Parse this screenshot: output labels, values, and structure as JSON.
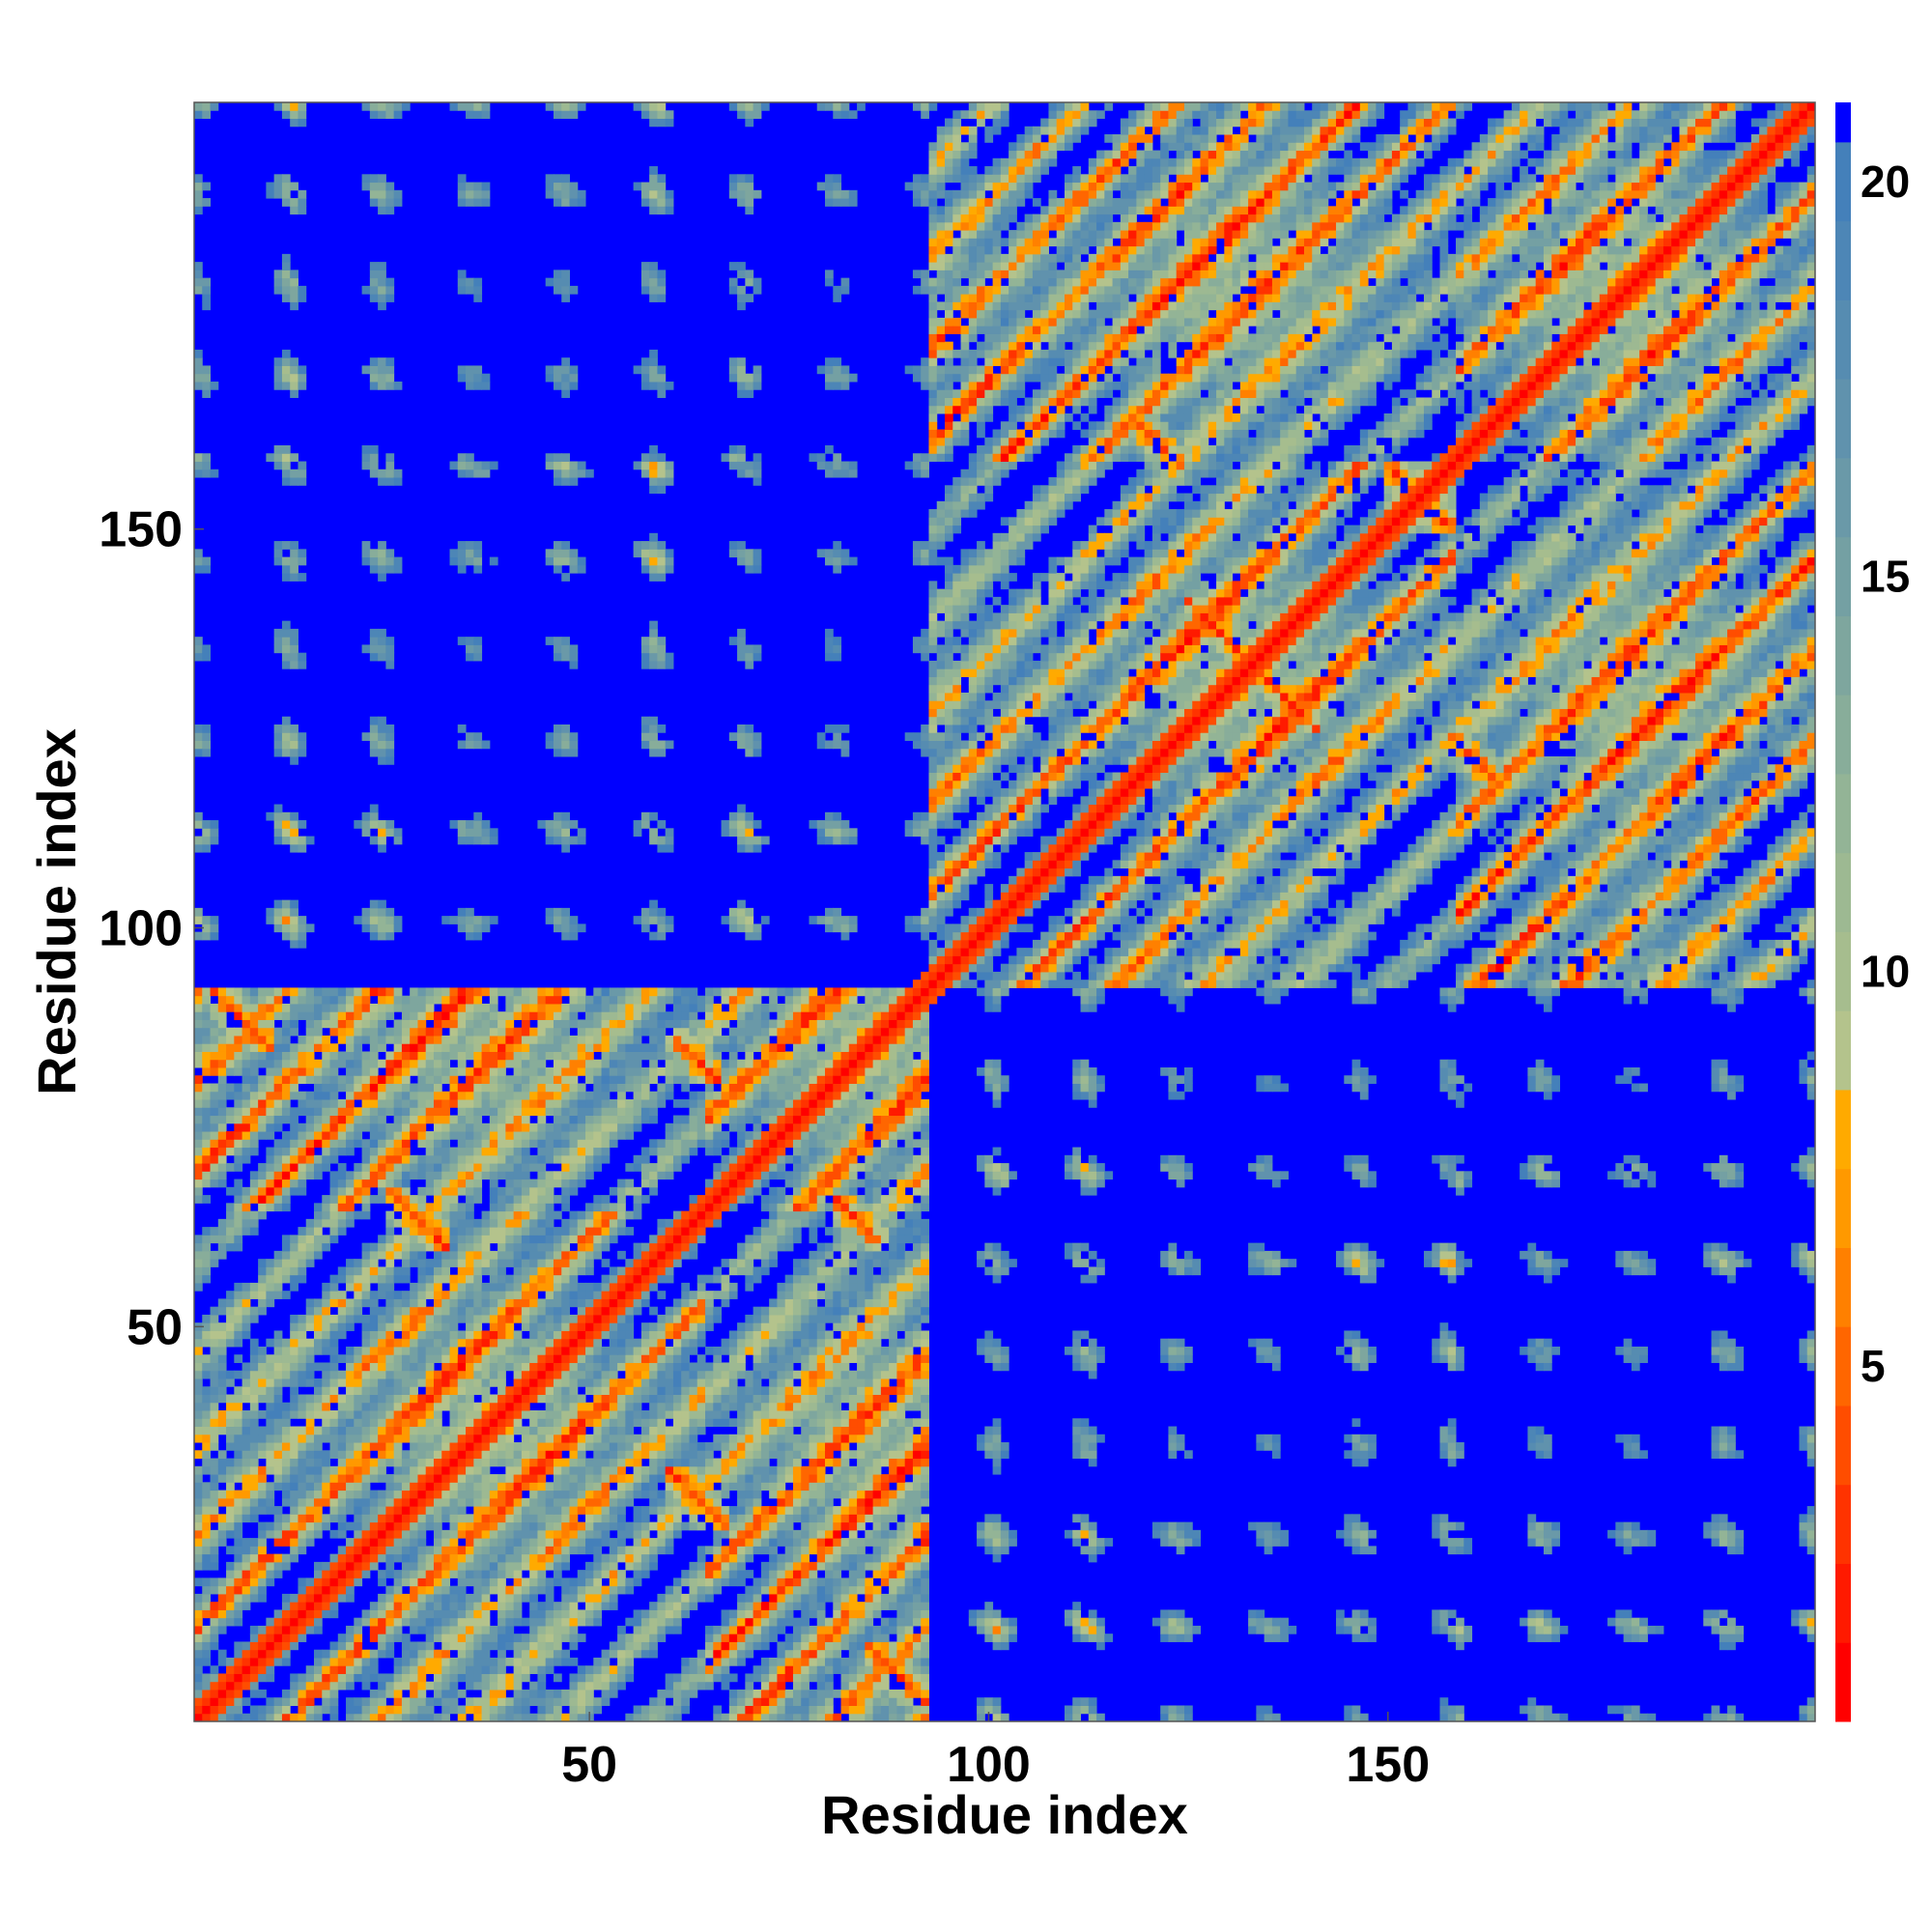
{
  "chart_data": {
    "type": "heatmap",
    "title": "",
    "xlabel": "Residue index",
    "ylabel": "Residue index",
    "n_residues": 203,
    "xlim": [
      1,
      203
    ],
    "ylim": [
      1,
      203
    ],
    "x_ticks": [
      "50",
      "100",
      "150"
    ],
    "y_ticks": [
      "50",
      "100",
      "150"
    ],
    "colorbar": {
      "ticks": [
        "5",
        "10",
        "15",
        "20"
      ],
      "range": [
        0.5,
        21
      ],
      "levels": [
        {
          "upper": 1.5,
          "color": "#ff0000"
        },
        {
          "upper": 2.5,
          "color": "#ff1a00"
        },
        {
          "upper": 3.5,
          "color": "#ff3300"
        },
        {
          "upper": 4.5,
          "color": "#ff4d00"
        },
        {
          "upper": 5.5,
          "color": "#ff6600"
        },
        {
          "upper": 6.5,
          "color": "#ff8000"
        },
        {
          "upper": 7.5,
          "color": "#ff9900"
        },
        {
          "upper": 8.5,
          "color": "#ffaa00"
        },
        {
          "upper": 9.5,
          "color": "#b4c38c"
        },
        {
          "upper": 10.5,
          "color": "#a6bd8e"
        },
        {
          "upper": 11.5,
          "color": "#9db992"
        },
        {
          "upper": 12.5,
          "color": "#93b496"
        },
        {
          "upper": 13.5,
          "color": "#88ad9a"
        },
        {
          "upper": 14.5,
          "color": "#7ea69e"
        },
        {
          "upper": 15.5,
          "color": "#74a0a3"
        },
        {
          "upper": 16.5,
          "color": "#6a99a8"
        },
        {
          "upper": 17.5,
          "color": "#6092ad"
        },
        {
          "upper": 18.5,
          "color": "#568cb1"
        },
        {
          "upper": 19.5,
          "color": "#4d86b6"
        },
        {
          "upper": 20.5,
          "color": "#4480ba"
        },
        {
          "upper": 21,
          "color": "#0000ff"
        }
      ]
    },
    "structure": {
      "cutoff": 20.5,
      "domains": [
        [
          1,
          92
        ],
        [
          95,
          203
        ]
      ],
      "contact_bands": [
        {
          "i": [
            3,
            10
          ],
          "j": [
            85,
            92
          ],
          "orientation": "anti"
        },
        {
          "i": [
            25,
            32
          ],
          "j": [
            60,
            67
          ],
          "orientation": "anti"
        },
        {
          "i": [
            56,
            63
          ],
          "j": [
            22,
            29
          ],
          "orientation": "anti"
        },
        {
          "i": [
            60,
            66
          ],
          "j": [
            81,
            87
          ],
          "orientation": "anti"
        },
        {
          "i": [
            83,
            90
          ],
          "j": [
            60,
            67
          ],
          "orientation": "anti"
        },
        {
          "i": [
            84,
            92
          ],
          "j": [
            2,
            9
          ],
          "orientation": "anti"
        },
        {
          "i": [
            42,
            48
          ],
          "j": [
            31,
            37
          ],
          "orientation": "parallel"
        },
        {
          "i": [
            118,
            124
          ],
          "j": [
            158,
            164
          ],
          "orientation": "anti"
        },
        {
          "i": [
            150,
            158
          ],
          "j": [
            150,
            158
          ],
          "orientation": "cross"
        },
        {
          "i": [
            158,
            164
          ],
          "j": [
            118,
            124
          ],
          "orientation": "anti"
        },
        {
          "i": [
            125,
            131
          ],
          "j": [
            135,
            141
          ],
          "orientation": "anti"
        },
        {
          "i": [
            135,
            141
          ],
          "j": [
            125,
            131
          ],
          "orientation": "anti"
        }
      ]
    }
  }
}
